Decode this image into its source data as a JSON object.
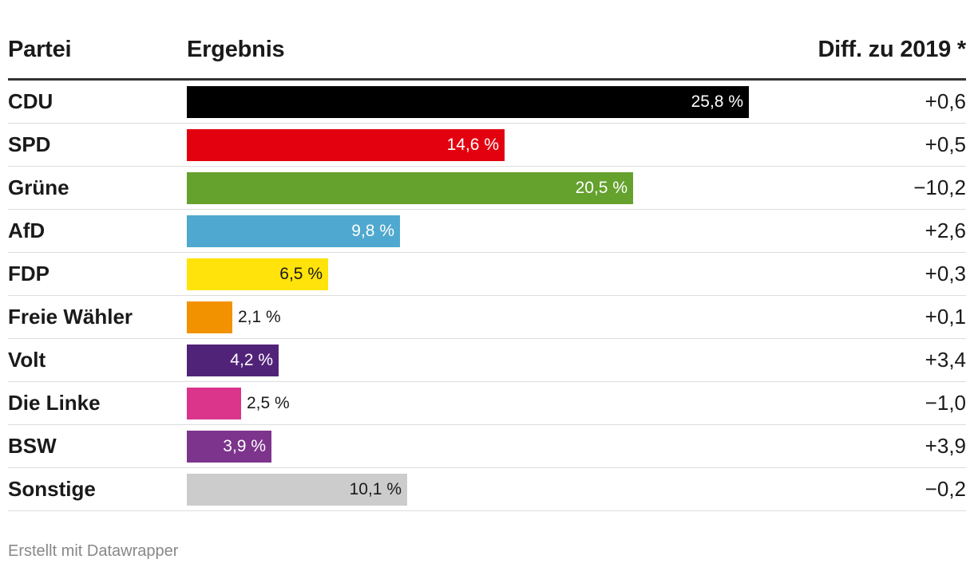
{
  "header": {
    "party": "Partei",
    "result": "Ergebnis",
    "diff": "Diff. zu 2019 *"
  },
  "footer": {
    "credit": "Erstellt mit Datawrapper"
  },
  "chart_data": {
    "type": "table",
    "columns": [
      "Partei",
      "Ergebnis",
      "Diff. zu 2019 *"
    ],
    "max_value": 25.8,
    "rows": [
      {
        "party": "CDU",
        "value": 25.8,
        "label": "25,8 %",
        "diff": "+0,6",
        "color": "#000000",
        "text_color": "#ffffff"
      },
      {
        "party": "SPD",
        "value": 14.6,
        "label": "14,6 %",
        "diff": "+0,5",
        "color": "#e3000f",
        "text_color": "#ffffff"
      },
      {
        "party": "Grüne",
        "value": 20.5,
        "label": "20,5 %",
        "diff": "−10,2",
        "color": "#64a12d",
        "text_color": "#ffffff"
      },
      {
        "party": "AfD",
        "value": 9.8,
        "label": "9,8 %",
        "diff": "+2,6",
        "color": "#4fa8cf",
        "text_color": "#ffffff"
      },
      {
        "party": "FDP",
        "value": 6.5,
        "label": "6,5 %",
        "diff": "+0,3",
        "color": "#ffe30a",
        "text_color": "#1a1a1a"
      },
      {
        "party": "Freie Wähler",
        "value": 2.1,
        "label": "2,1 %",
        "diff": "+0,1",
        "color": "#f39200",
        "text_color": "#1a1a1a"
      },
      {
        "party": "Volt",
        "value": 4.2,
        "label": "4,2 %",
        "diff": "+3,4",
        "color": "#502379",
        "text_color": "#ffffff"
      },
      {
        "party": "Die Linke",
        "value": 2.5,
        "label": "2,5 %",
        "diff": "−1,0",
        "color": "#da358b",
        "text_color": "#1a1a1a"
      },
      {
        "party": "BSW",
        "value": 3.9,
        "label": "3,9 %",
        "diff": "+3,9",
        "color": "#7d348c",
        "text_color": "#ffffff"
      },
      {
        "party": "Sonstige",
        "value": 10.1,
        "label": "10,1 %",
        "diff": "−0,2",
        "color": "#cccccc",
        "text_color": "#1a1a1a"
      }
    ]
  }
}
